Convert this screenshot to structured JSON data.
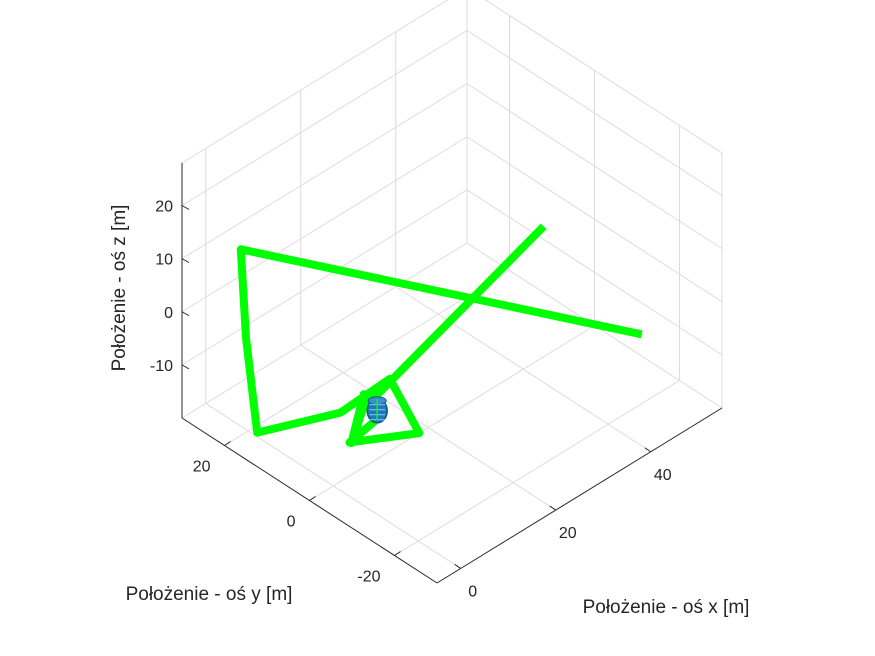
{
  "chart_data": {
    "type": "line3d",
    "title": "",
    "xlabel": "Położenie - oś x [m]",
    "ylabel": "Położenie - oś y [m]",
    "zlabel": "Położenie - oś z [m]",
    "xlim": [
      -5,
      55
    ],
    "ylim": [
      -30,
      30
    ],
    "zlim": [
      -20,
      28
    ],
    "xticks": [
      0,
      20,
      40
    ],
    "yticks": [
      -20,
      0,
      20
    ],
    "zticks": [
      -10,
      0,
      10,
      20
    ],
    "xtick_labels": [
      "0",
      "20",
      "40"
    ],
    "ytick_labels": [
      "-20",
      "0",
      "20"
    ],
    "ztick_labels": [
      "-10",
      "0",
      "10",
      "20"
    ],
    "grid": true,
    "series": [
      {
        "color": "#00ff00",
        "x": [
          40.7,
          2.9,
          -0.3,
          -3.4,
          7.0,
          15.3,
          16.6,
          4.4,
          8.9,
          10.0,
          2.0,
          8.0,
          38.4
        ],
        "y": [
          -27.1,
          25.0,
          20.2,
          14.1,
          6.1,
          3.8,
          -1.7,
          1.1,
          -0.9,
          4.0,
          -2.0,
          2.0,
          -6.6
        ],
        "z": [
          0.2,
          10.0,
          -2.4,
          -15.4,
          -13.2,
          -10.2,
          -18.3,
          -14.8,
          -11.5,
          -10.3,
          -12.0,
          -11.0,
          11.2
        ]
      }
    ],
    "drone_marker": {
      "color": "#1f77b4",
      "x": 11.4,
      "y": 2.4,
      "z": -12.6
    }
  }
}
